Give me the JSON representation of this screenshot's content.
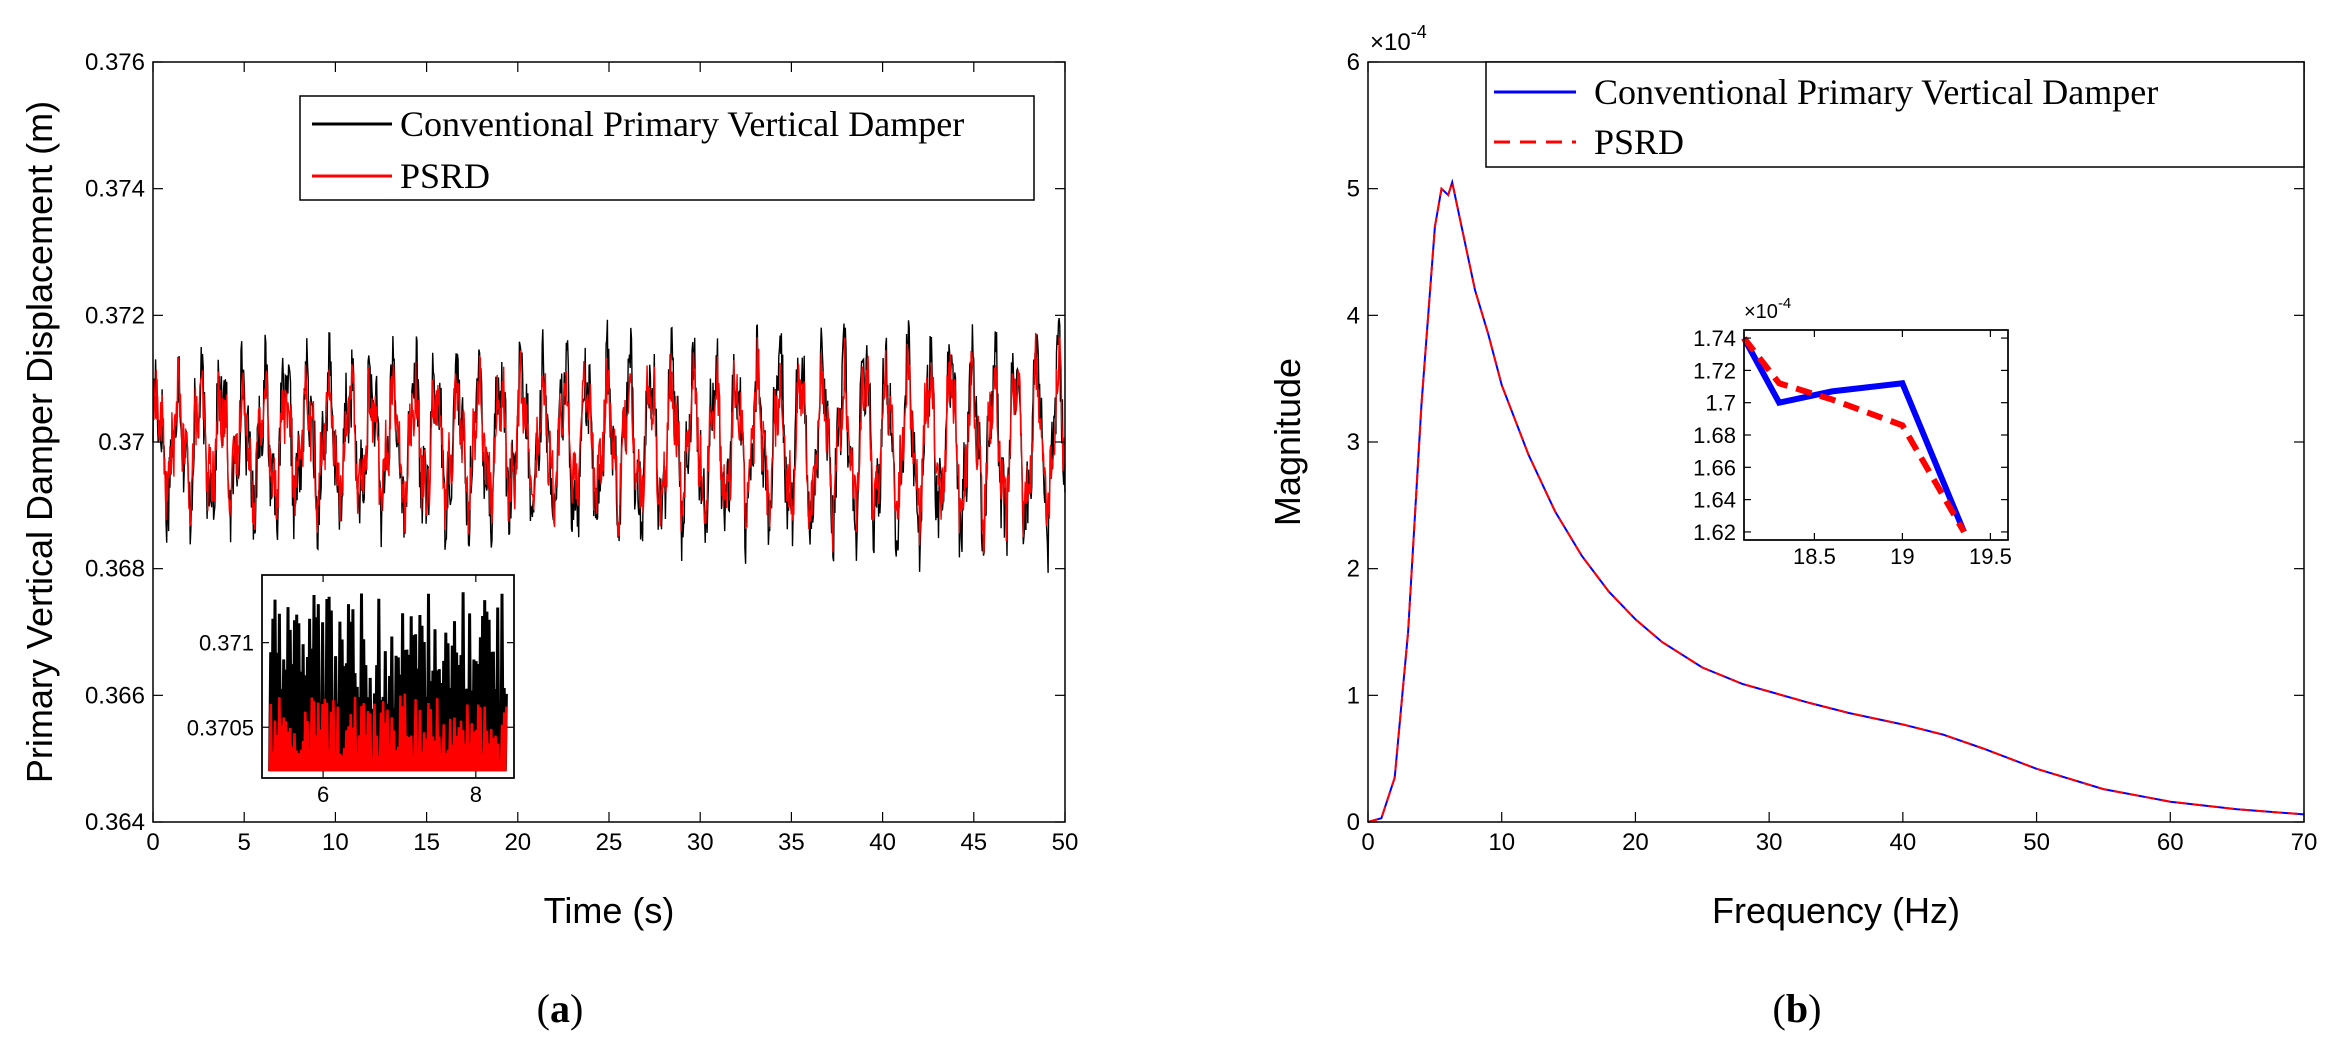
{
  "chart_data": [
    {
      "type": "line",
      "panel_label": {
        "open": "(",
        "letter": "a",
        "close": ")"
      },
      "xlabel": "Time (s)",
      "ylabel": "Primary Vertical Damper Displacement (m)",
      "xlim": [
        0,
        50
      ],
      "ylim": [
        0.364,
        0.376
      ],
      "xticks": [
        "0",
        "5",
        "10",
        "15",
        "20",
        "25",
        "30",
        "35",
        "40",
        "45",
        "50"
      ],
      "yticks": [
        "0.364",
        "0.366",
        "0.368",
        "0.37",
        "0.372",
        "0.374",
        "0.376"
      ],
      "legend": [
        "Conventional Primary Vertical Damper",
        "PSRD"
      ],
      "series": [
        {
          "name": "Conventional Primary Vertical Damper",
          "color": "#000000",
          "baseline": 0.37,
          "amplitude": 0.0011,
          "noise": 0.0006,
          "dominant_freq_hz": 0.85
        },
        {
          "name": "PSRD",
          "color": "#ff0000",
          "baseline": 0.37,
          "amplitude": 0.0009,
          "noise": 0.0005,
          "dominant_freq_hz": 0.85
        }
      ],
      "inset": {
        "xlim": [
          5.2,
          8.5
        ],
        "ylim": [
          0.3702,
          0.3714
        ],
        "xticks": [
          "6",
          "8"
        ],
        "yticks": [
          "0.3705",
          "0.371"
        ]
      }
    },
    {
      "type": "line",
      "panel_label": {
        "open": "(",
        "letter": "b",
        "close": ")"
      },
      "xlabel": "Frequency (Hz)",
      "ylabel": "Magnitude",
      "xlim": [
        0,
        70
      ],
      "ylim": [
        0,
        6
      ],
      "y_multiplier": "×10",
      "y_exponent": "-4",
      "xticks": [
        "0",
        "10",
        "20",
        "30",
        "40",
        "50",
        "60",
        "70"
      ],
      "yticks": [
        "0",
        "1",
        "2",
        "3",
        "4",
        "5",
        "6"
      ],
      "legend": [
        "Conventional Primary Vertical Damper",
        "PSRD"
      ],
      "series": [
        {
          "name": "Conventional Primary Vertical Damper",
          "color": "#0000ff",
          "style": "solid",
          "x": [
            0,
            1,
            2,
            3,
            4,
            5,
            5.5,
            6,
            6.3,
            7,
            8,
            9,
            10,
            12,
            14,
            16,
            18,
            20,
            22,
            25,
            28,
            30,
            33,
            36,
            40,
            43,
            46,
            50,
            55,
            60,
            65,
            70
          ],
          "y": [
            0,
            0.03,
            0.35,
            1.5,
            3.3,
            4.7,
            5.0,
            4.95,
            5.05,
            4.7,
            4.2,
            3.85,
            3.45,
            2.9,
            2.45,
            2.1,
            1.82,
            1.6,
            1.42,
            1.22,
            1.09,
            1.03,
            0.94,
            0.86,
            0.77,
            0.69,
            0.58,
            0.42,
            0.26,
            0.16,
            0.1,
            0.06
          ]
        },
        {
          "name": "PSRD",
          "color": "#ff0000",
          "style": "dashed",
          "x": [
            0,
            1,
            2,
            3,
            4,
            5,
            5.5,
            6,
            6.3,
            7,
            8,
            9,
            10,
            12,
            14,
            16,
            18,
            20,
            22,
            25,
            28,
            30,
            33,
            36,
            40,
            43,
            46,
            50,
            55,
            60,
            65,
            70
          ],
          "y": [
            0,
            0.03,
            0.35,
            1.5,
            3.3,
            4.7,
            5.0,
            4.95,
            5.05,
            4.7,
            4.2,
            3.85,
            3.45,
            2.9,
            2.45,
            2.1,
            1.82,
            1.6,
            1.42,
            1.22,
            1.09,
            1.03,
            0.94,
            0.86,
            0.77,
            0.69,
            0.58,
            0.42,
            0.26,
            0.16,
            0.1,
            0.06
          ]
        }
      ],
      "inset": {
        "xlim": [
          18.1,
          19.6
        ],
        "ylim": [
          1.615,
          1.745
        ],
        "xticks": [
          "18.5",
          "19",
          "19.5"
        ],
        "yticks": [
          "1.62",
          "1.64",
          "1.66",
          "1.68",
          "1.7",
          "1.72",
          "1.74"
        ],
        "y_multiplier": "×10",
        "y_exponent": "-4",
        "series": [
          {
            "name": "Conventional Primary Vertical Damper",
            "color": "#0000ff",
            "x": [
              18.1,
              18.3,
              18.6,
              19.0,
              19.35
            ],
            "y": [
              1.74,
              1.7,
              1.707,
              1.712,
              1.62
            ]
          },
          {
            "name": "PSRD",
            "color": "#ff0000",
            "x": [
              18.1,
              18.3,
              18.6,
              19.0,
              19.35
            ],
            "y": [
              1.74,
              1.712,
              1.702,
              1.686,
              1.62
            ]
          }
        ]
      }
    }
  ]
}
